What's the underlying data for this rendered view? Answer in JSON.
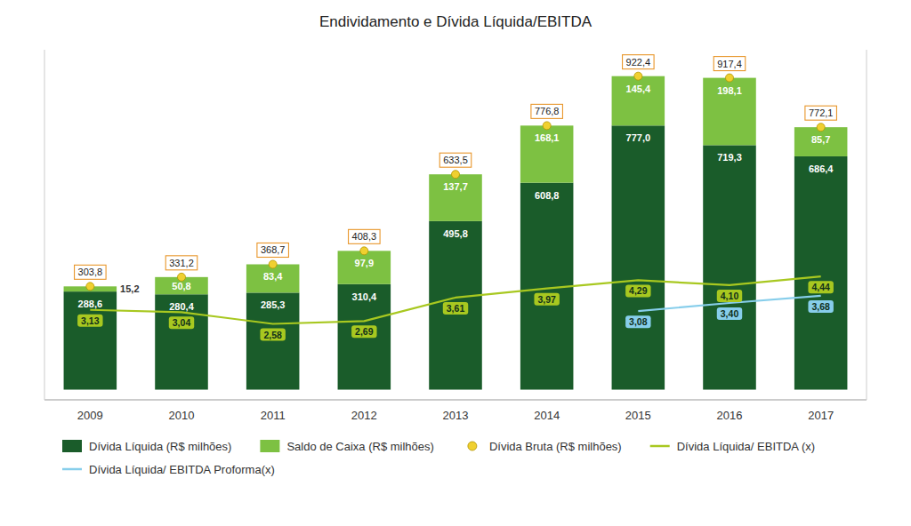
{
  "chart_data": {
    "type": "bar",
    "stacked": true,
    "title": "Endividamento e Dívida Líquida/EBITDA",
    "categories": [
      "2009",
      "2010",
      "2011",
      "2012",
      "2013",
      "2014",
      "2015",
      "2016",
      "2017"
    ],
    "ylim": [
      -30,
      1000
    ],
    "y2lim": [
      -0.4,
      13.333333333333334
    ],
    "tick_labels": "x",
    "legend": "bottom",
    "data_labels": true,
    "series": [
      {
        "name": "Dívida Líquida (R$ milhões)",
        "type": "bar",
        "color": "#1a5c2a",
        "values": [
          288.6,
          280.4,
          285.3,
          310.4,
          495.8,
          608.8,
          777.0,
          719.3,
          686.4
        ],
        "value_labels": [
          "288,6",
          "280,4",
          "285,3",
          "310,4",
          "495,8",
          "608,8",
          "777,0",
          "719,3",
          "686,4"
        ]
      },
      {
        "name": "Saldo de Caixa (R$ milhões)",
        "type": "bar",
        "color": "#7dc142",
        "values": [
          15.2,
          50.8,
          83.4,
          97.9,
          137.7,
          168.1,
          145.4,
          198.1,
          85.7
        ],
        "value_labels": [
          "15,2",
          "50,8",
          "83,4",
          "97,9",
          "137,7",
          "168,1",
          "145,4",
          "198,1",
          "85,7"
        ]
      },
      {
        "name": "Dívida Bruta (R$ milhões)",
        "type": "scatter",
        "marker": "circle",
        "color": "#f0d030",
        "values": [
          303.8,
          331.2,
          368.7,
          408.3,
          633.5,
          776.8,
          922.4,
          917.4,
          772.1
        ],
        "value_labels": [
          "303,8",
          "331,2",
          "368,7",
          "408,3",
          "633,5",
          "776,8",
          "922,4",
          "917,4",
          "772,1"
        ]
      },
      {
        "name": "Dívida Líquida/ EBITDA (x)",
        "type": "line",
        "axis": "y2",
        "color": "#a8c820",
        "values": [
          3.13,
          3.04,
          2.58,
          2.69,
          3.61,
          3.97,
          4.29,
          4.1,
          4.44
        ],
        "value_labels": [
          "3,13",
          "3,04",
          "2,58",
          "2,69",
          "3,61",
          "3,97",
          "4,29",
          "4,10",
          "4,44"
        ]
      },
      {
        "name": "Dívida Líquida/ EBITDA Proforma(x)",
        "type": "line",
        "axis": "y2",
        "color": "#87ceeb",
        "values": [
          null,
          null,
          null,
          null,
          null,
          null,
          3.08,
          3.4,
          3.68
        ],
        "value_labels": [
          null,
          null,
          null,
          null,
          null,
          null,
          "3,08",
          "3,40",
          "3,68"
        ]
      }
    ]
  }
}
